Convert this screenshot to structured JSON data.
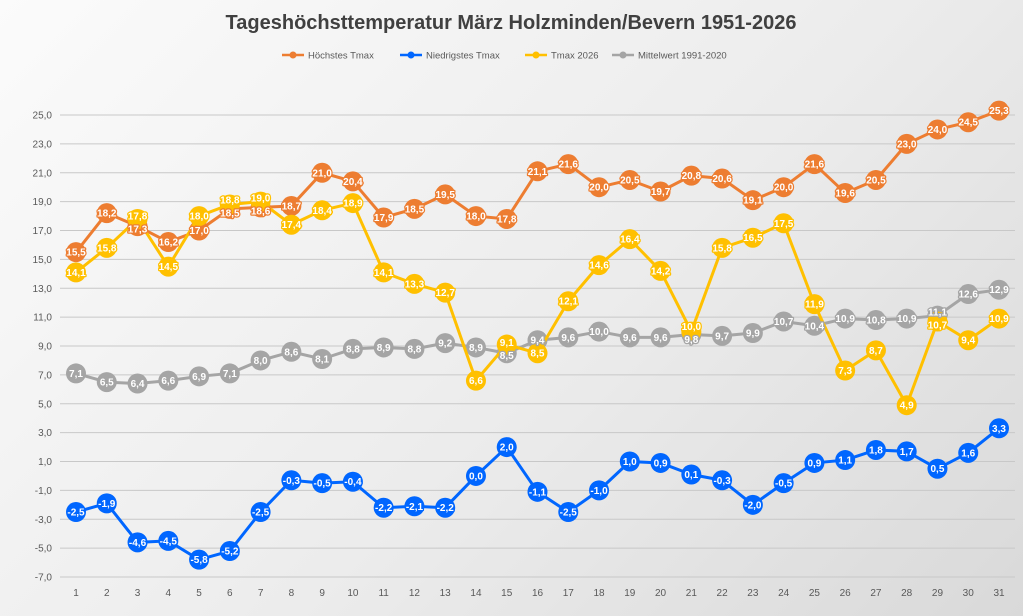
{
  "chart_data": {
    "type": "line",
    "title": "Tageshöchsttemperatur März Holzminden/Bevern 1951-2026",
    "xlabel": "",
    "ylabel": "",
    "x": [
      1,
      2,
      3,
      4,
      5,
      6,
      7,
      8,
      9,
      10,
      11,
      12,
      13,
      14,
      15,
      16,
      17,
      18,
      19,
      20,
      21,
      22,
      23,
      24,
      25,
      26,
      27,
      28,
      29,
      30,
      31
    ],
    "ylim": [
      -7,
      25
    ],
    "y_ticks": [
      "-7,0",
      "-5,0",
      "-3,0",
      "-1,0",
      "1,0",
      "3,0",
      "5,0",
      "7,0",
      "9,0",
      "11,0",
      "13,0",
      "15,0",
      "17,0",
      "19,0",
      "21,0",
      "23,0",
      "25,0"
    ],
    "grid": true,
    "legend_position": "top",
    "data_labels": true,
    "series": [
      {
        "name": "Höchstes Tmax",
        "color": "#ED7D31",
        "values": [
          15.5,
          18.2,
          17.3,
          16.2,
          17.0,
          18.5,
          18.6,
          18.7,
          21.0,
          20.4,
          17.9,
          18.5,
          19.5,
          18.0,
          17.8,
          21.1,
          21.6,
          20.0,
          20.5,
          19.7,
          20.8,
          20.6,
          19.1,
          20.0,
          21.6,
          19.6,
          20.5,
          23.0,
          24.0,
          24.5,
          25.3
        ]
      },
      {
        "name": "Niedrigstes Tmax",
        "color": "#0066FF",
        "values": [
          -2.5,
          -1.9,
          -4.6,
          -4.5,
          -5.8,
          -5.2,
          -2.5,
          -0.3,
          -0.5,
          -0.4,
          -2.2,
          -2.1,
          -2.2,
          0.0,
          2.0,
          -1.1,
          -2.5,
          -1.0,
          1.0,
          0.9,
          0.1,
          -0.3,
          -2.0,
          -0.5,
          0.9,
          1.1,
          1.8,
          1.7,
          0.5,
          1.6,
          3.3
        ]
      },
      {
        "name": "Tmax 2026",
        "color": "#FFC000",
        "values": [
          14.1,
          15.8,
          17.8,
          14.5,
          18.0,
          18.8,
          19.0,
          17.4,
          18.4,
          18.9,
          14.1,
          13.3,
          12.7,
          6.6,
          9.1,
          8.5,
          12.1,
          14.6,
          16.4,
          14.2,
          10.0,
          15.8,
          16.5,
          17.5,
          11.9,
          7.3,
          8.7,
          4.9,
          10.7,
          9.4,
          10.9
        ]
      },
      {
        "name": "Mittelwert 1991-2020",
        "color": "#A5A5A5",
        "values": [
          7.1,
          6.5,
          6.4,
          6.6,
          6.9,
          7.1,
          8.0,
          8.6,
          8.1,
          8.8,
          8.9,
          8.8,
          9.2,
          8.9,
          8.5,
          9.4,
          9.6,
          10.0,
          9.6,
          9.6,
          9.8,
          9.7,
          9.9,
          10.7,
          10.4,
          10.9,
          10.8,
          10.9,
          11.1,
          12.6,
          12.9
        ]
      }
    ]
  }
}
